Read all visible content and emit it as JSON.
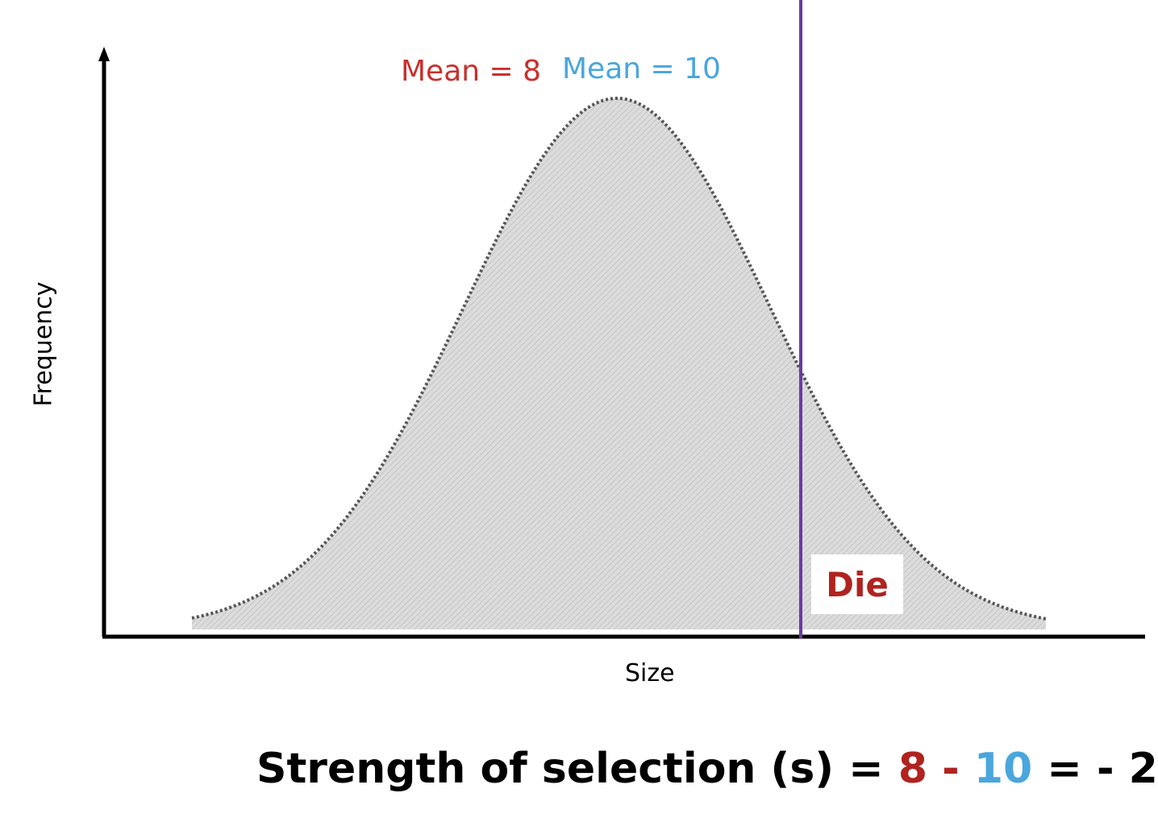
{
  "chart_data": {
    "type": "area",
    "title": "",
    "xlabel": "Size",
    "ylabel": "Frequency",
    "distribution": "normal",
    "threshold_label": "Die",
    "annotations": {
      "mean_before": "Mean = 8",
      "mean_after": "Mean = 10"
    },
    "grid": false
  },
  "formula": {
    "prefix": "Strength of selection (s) = ",
    "value_a": "8",
    "minus": " - ",
    "value_b": "10",
    "result": " = - 2"
  },
  "colors": {
    "mean_before": "#c9302c",
    "mean_after": "#4aa6dc",
    "threshold_line": "#6a3aa8",
    "die_text": "#b0231e",
    "fill": "#d4d4d4",
    "curve_outline": "#555555"
  }
}
